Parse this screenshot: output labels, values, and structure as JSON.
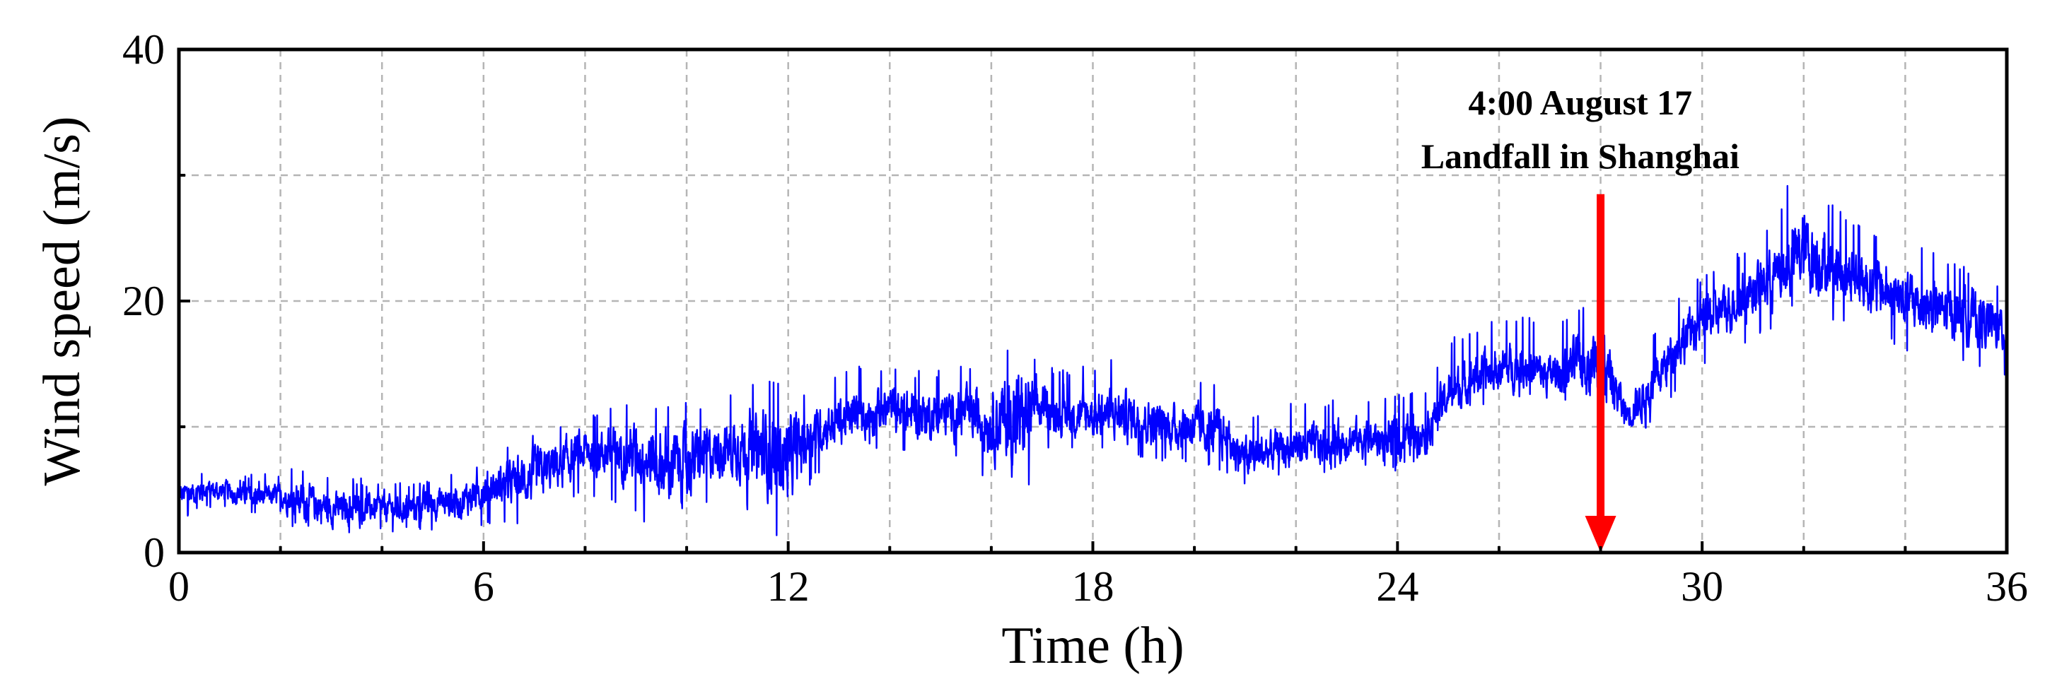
{
  "chart_data": {
    "type": "line",
    "title": "",
    "xlabel": "Time (h)",
    "ylabel": "Wind speed (m/s)",
    "xlim": [
      0,
      36
    ],
    "ylim": [
      0,
      40
    ],
    "x_ticks": [
      0,
      6,
      12,
      18,
      24,
      30,
      36
    ],
    "y_ticks": [
      0,
      20,
      40
    ],
    "x_minor_step": 2,
    "y_minor_step": 10,
    "grid": true,
    "legend": "none",
    "series": [
      {
        "color": "#0000ff",
        "envelope_step_h": 0.5,
        "x": [
          0,
          0.5,
          1,
          1.5,
          2,
          2.5,
          3,
          3.5,
          4,
          4.5,
          5,
          5.5,
          6,
          6.5,
          7,
          7.5,
          8,
          8.5,
          9,
          9.5,
          10,
          10.5,
          11,
          11.5,
          12,
          12.5,
          13,
          13.5,
          14,
          14.5,
          15,
          15.5,
          16,
          16.5,
          17,
          17.5,
          18,
          18.5,
          19,
          19.5,
          20,
          20.5,
          21,
          21.5,
          22,
          22.5,
          23,
          23.5,
          24,
          24.5,
          25,
          25.5,
          26,
          26.5,
          27,
          27.5,
          28,
          28.5,
          29,
          29.5,
          30,
          30.5,
          31,
          31.5,
          32,
          32.5,
          33,
          33.5,
          34,
          34.5,
          35,
          35.5,
          36
        ],
        "mean": [
          4.5,
          5,
          4.8,
          4.5,
          4.5,
          4,
          3.5,
          3.5,
          3.5,
          3.5,
          4,
          4,
          5,
          5.5,
          6,
          7,
          8,
          8,
          8,
          7,
          7,
          8,
          8.5,
          8,
          7.5,
          9.5,
          10.5,
          11,
          11.5,
          11,
          11,
          11,
          10.5,
          10.5,
          11.5,
          11,
          11,
          11,
          10.5,
          10,
          10,
          9.5,
          7.5,
          8,
          8.5,
          8.5,
          9,
          9,
          9,
          9.5,
          12.5,
          14,
          14.5,
          15,
          14,
          15,
          15.5,
          11,
          13,
          16.5,
          18.5,
          19.5,
          21,
          22,
          24,
          23,
          22,
          21,
          20,
          19.5,
          19,
          18.5,
          17.5
        ],
        "lower": [
          2.5,
          3.5,
          3,
          3,
          3,
          1,
          1,
          1.5,
          1.5,
          1.5,
          1.8,
          1.5,
          2,
          2.5,
          1.5,
          3.5,
          4.5,
          4,
          3,
          1,
          1.5,
          4.5,
          4,
          2,
          0.5,
          6,
          7.5,
          8,
          8.5,
          7.5,
          7.5,
          7.5,
          5,
          2,
          8,
          8,
          8,
          8,
          7.5,
          7,
          7,
          6.5,
          5,
          5.5,
          6,
          6,
          6.5,
          6.5,
          6.5,
          7,
          10,
          11.5,
          12,
          12,
          12,
          11.5,
          9,
          9,
          10,
          13,
          15,
          15.5,
          17,
          18,
          20,
          18.5,
          18,
          17,
          16,
          15.5,
          15,
          14.5,
          14
        ],
        "upper": [
          6.5,
          6.5,
          6.3,
          6.2,
          6.5,
          7,
          6,
          6,
          5.5,
          5.8,
          6.2,
          6.5,
          7.5,
          8.5,
          9.5,
          10.5,
          11,
          11.5,
          12,
          12,
          12,
          12,
          13,
          14.5,
          13,
          13,
          14.5,
          15,
          15,
          14.5,
          14.5,
          15,
          15,
          17.5,
          15,
          14.5,
          15,
          15.5,
          14.5,
          13.5,
          14,
          13.5,
          11,
          11.5,
          12,
          12,
          12.5,
          12.5,
          13,
          12.5,
          17,
          18,
          18.5,
          19,
          18,
          19.5,
          20.5,
          14,
          17,
          20.5,
          22,
          23,
          25,
          27,
          33,
          28,
          26.5,
          25.5,
          25,
          24,
          23,
          22.5,
          21
        ]
      }
    ],
    "annotations": [
      {
        "lines": [
          "4:00 August 17",
          "Landfall in Shanghai"
        ],
        "arrow_x": 28,
        "arrow_y_start": 28.5,
        "arrow_y_end": 0,
        "color": "#ff0000"
      }
    ]
  }
}
